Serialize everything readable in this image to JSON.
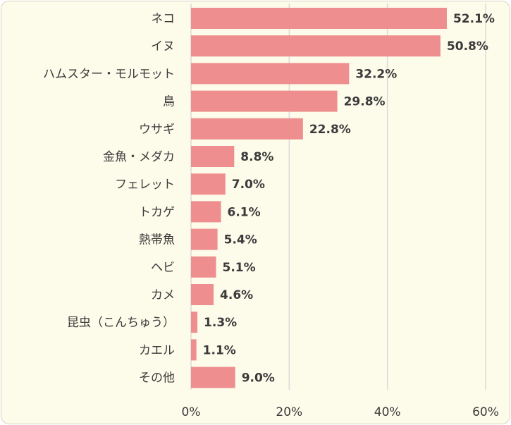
{
  "chart_data": {
    "type": "bar",
    "orientation": "horizontal",
    "categories": [
      "ネコ",
      "イヌ",
      "ハムスター・モルモット",
      "鳥",
      "ウサギ",
      "金魚・メダカ",
      "フェレット",
      "トカゲ",
      "熱帯魚",
      "ヘビ",
      "カメ",
      "昆虫（こんちゅう）",
      "カエル",
      "その他"
    ],
    "values": [
      52.1,
      50.8,
      32.2,
      29.8,
      22.8,
      8.8,
      7.0,
      6.1,
      5.4,
      5.1,
      4.6,
      1.3,
      1.1,
      9.0
    ],
    "value_labels": [
      "52.1%",
      "50.8%",
      "32.2%",
      "29.8%",
      "22.8%",
      "8.8%",
      "7.0%",
      "6.1%",
      "5.4%",
      "5.1%",
      "4.6%",
      "1.3%",
      "1.1%",
      "9.0%"
    ],
    "xlim": [
      0,
      60
    ],
    "x_ticks": [
      0,
      20,
      40,
      60
    ],
    "x_tick_labels": [
      "0%",
      "20%",
      "40%",
      "60%"
    ],
    "grid": true,
    "legend": "none",
    "bar_color": "#ee8e8e",
    "background_color": "#fdfbea",
    "grid_color": "#d9d9d9"
  }
}
